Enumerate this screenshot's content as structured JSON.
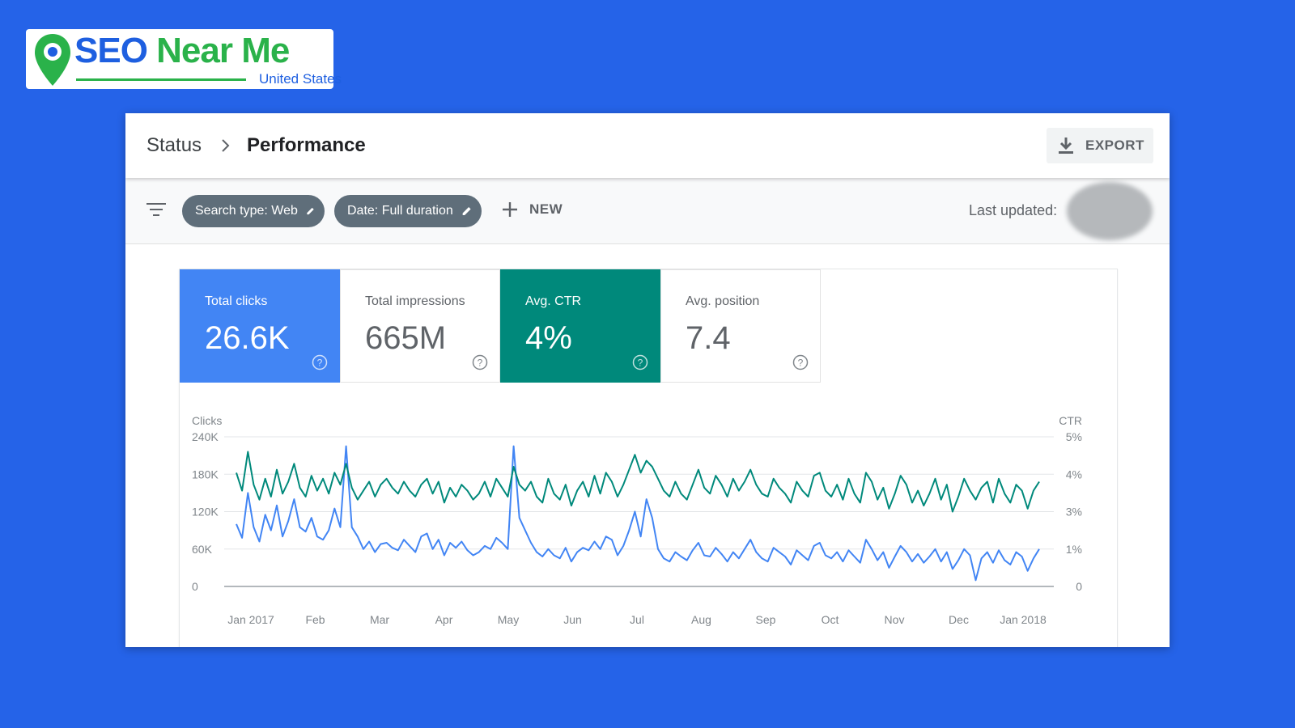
{
  "logo": {
    "brand_part1": "SEO",
    "brand_part2": "Near Me",
    "subtitle": "United States"
  },
  "breadcrumb": {
    "parent": "Status",
    "current": "Performance"
  },
  "toolbar": {
    "export_label": "EXPORT"
  },
  "filters": {
    "search_type": "Search type: Web",
    "date": "Date: Full duration",
    "new_label": "NEW",
    "last_updated_label": "Last updated:"
  },
  "metrics": [
    {
      "label": "Total clicks",
      "value": "26.6K"
    },
    {
      "label": "Total impressions",
      "value": "665M"
    },
    {
      "label": "Avg. CTR",
      "value": "4%"
    },
    {
      "label": "Avg. position",
      "value": "7.4"
    }
  ],
  "colors": {
    "background": "#2563e8",
    "clicks": "#4285f4",
    "ctr": "#00897b",
    "chip": "#5f6e7a"
  },
  "icons": [
    "map-pin-icon",
    "chevron-right-icon",
    "download-icon",
    "filter-list-icon",
    "edit-pencil-icon",
    "plus-icon",
    "help-circle-icon"
  ],
  "chart_data": {
    "type": "line",
    "left_axis_label": "Clicks",
    "right_axis_label": "CTR",
    "left_ticks": [
      "240K",
      "180K",
      "120K",
      "60K",
      "0"
    ],
    "right_ticks": [
      "5%",
      "4%",
      "3%",
      "1%",
      "0"
    ],
    "left_ylim": [
      0,
      240000
    ],
    "right_ylim": [
      0,
      5
    ],
    "x_ticks": [
      "Jan 2017",
      "Feb",
      "Mar",
      "Apr",
      "May",
      "Jun",
      "Jul",
      "Aug",
      "Sep",
      "Oct",
      "Nov",
      "Dec",
      "Jan 2018"
    ],
    "grid": true,
    "series": [
      {
        "color": "#4285f4",
        "axis": "left",
        "values": [
          100000,
          78000,
          150000,
          95000,
          72000,
          115000,
          90000,
          130000,
          80000,
          105000,
          140000,
          95000,
          88000,
          110000,
          80000,
          75000,
          90000,
          125000,
          95000,
          225000,
          95000,
          80000,
          60000,
          72000,
          55000,
          68000,
          70000,
          62000,
          58000,
          75000,
          65000,
          55000,
          80000,
          85000,
          60000,
          75000,
          50000,
          70000,
          62000,
          72000,
          58000,
          50000,
          55000,
          65000,
          60000,
          78000,
          70000,
          60000,
          225000,
          110000,
          90000,
          70000,
          55000,
          48000,
          60000,
          50000,
          45000,
          62000,
          40000,
          55000,
          62000,
          58000,
          72000,
          60000,
          80000,
          75000,
          50000,
          65000,
          90000,
          120000,
          80000,
          140000,
          110000,
          60000,
          45000,
          40000,
          55000,
          48000,
          42000,
          58000,
          70000,
          50000,
          48000,
          62000,
          52000,
          40000,
          55000,
          45000,
          60000,
          75000,
          55000,
          45000,
          40000,
          62000,
          55000,
          48000,
          35000,
          58000,
          50000,
          42000,
          65000,
          70000,
          50000,
          45000,
          55000,
          40000,
          58000,
          48000,
          38000,
          75000,
          60000,
          42000,
          55000,
          30000,
          48000,
          65000,
          55000,
          40000,
          52000,
          38000,
          48000,
          60000,
          40000,
          55000,
          28000,
          42000,
          60000,
          50000,
          10000,
          45000,
          55000,
          38000,
          58000,
          42000,
          35000,
          55000,
          48000,
          25000,
          45000,
          60000
        ]
      },
      {
        "color": "#00897b",
        "axis": "right",
        "values": [
          3.8,
          3.2,
          4.5,
          3.4,
          2.9,
          3.6,
          3.0,
          3.9,
          3.1,
          3.5,
          4.1,
          3.3,
          3.0,
          3.7,
          3.2,
          3.6,
          3.1,
          3.8,
          3.4,
          4.1,
          3.3,
          2.9,
          3.2,
          3.5,
          3.0,
          3.4,
          3.6,
          3.3,
          3.1,
          3.5,
          3.2,
          3.0,
          3.4,
          3.6,
          3.1,
          3.5,
          2.8,
          3.3,
          3.0,
          3.4,
          3.2,
          2.9,
          3.1,
          3.5,
          3.0,
          3.6,
          3.3,
          3.0,
          4.0,
          3.4,
          3.2,
          3.5,
          3.0,
          2.8,
          3.6,
          3.1,
          2.9,
          3.4,
          2.7,
          3.2,
          3.5,
          3.0,
          3.7,
          3.1,
          3.8,
          3.5,
          3.0,
          3.4,
          3.9,
          4.4,
          3.8,
          4.2,
          4.0,
          3.6,
          3.2,
          3.0,
          3.5,
          3.1,
          2.9,
          3.4,
          3.9,
          3.3,
          3.1,
          3.7,
          3.4,
          3.0,
          3.6,
          3.2,
          3.5,
          3.9,
          3.4,
          3.1,
          3.0,
          3.6,
          3.3,
          3.1,
          2.8,
          3.5,
          3.2,
          3.0,
          3.7,
          3.8,
          3.2,
          3.0,
          3.4,
          2.9,
          3.6,
          3.1,
          2.8,
          3.8,
          3.5,
          2.9,
          3.3,
          2.6,
          3.1,
          3.7,
          3.4,
          2.8,
          3.2,
          2.7,
          3.1,
          3.6,
          2.9,
          3.4,
          2.5,
          3.0,
          3.6,
          3.2,
          2.9,
          3.3,
          3.5,
          2.8,
          3.6,
          3.1,
          2.8,
          3.4,
          3.2,
          2.6,
          3.2,
          3.5
        ]
      }
    ]
  }
}
